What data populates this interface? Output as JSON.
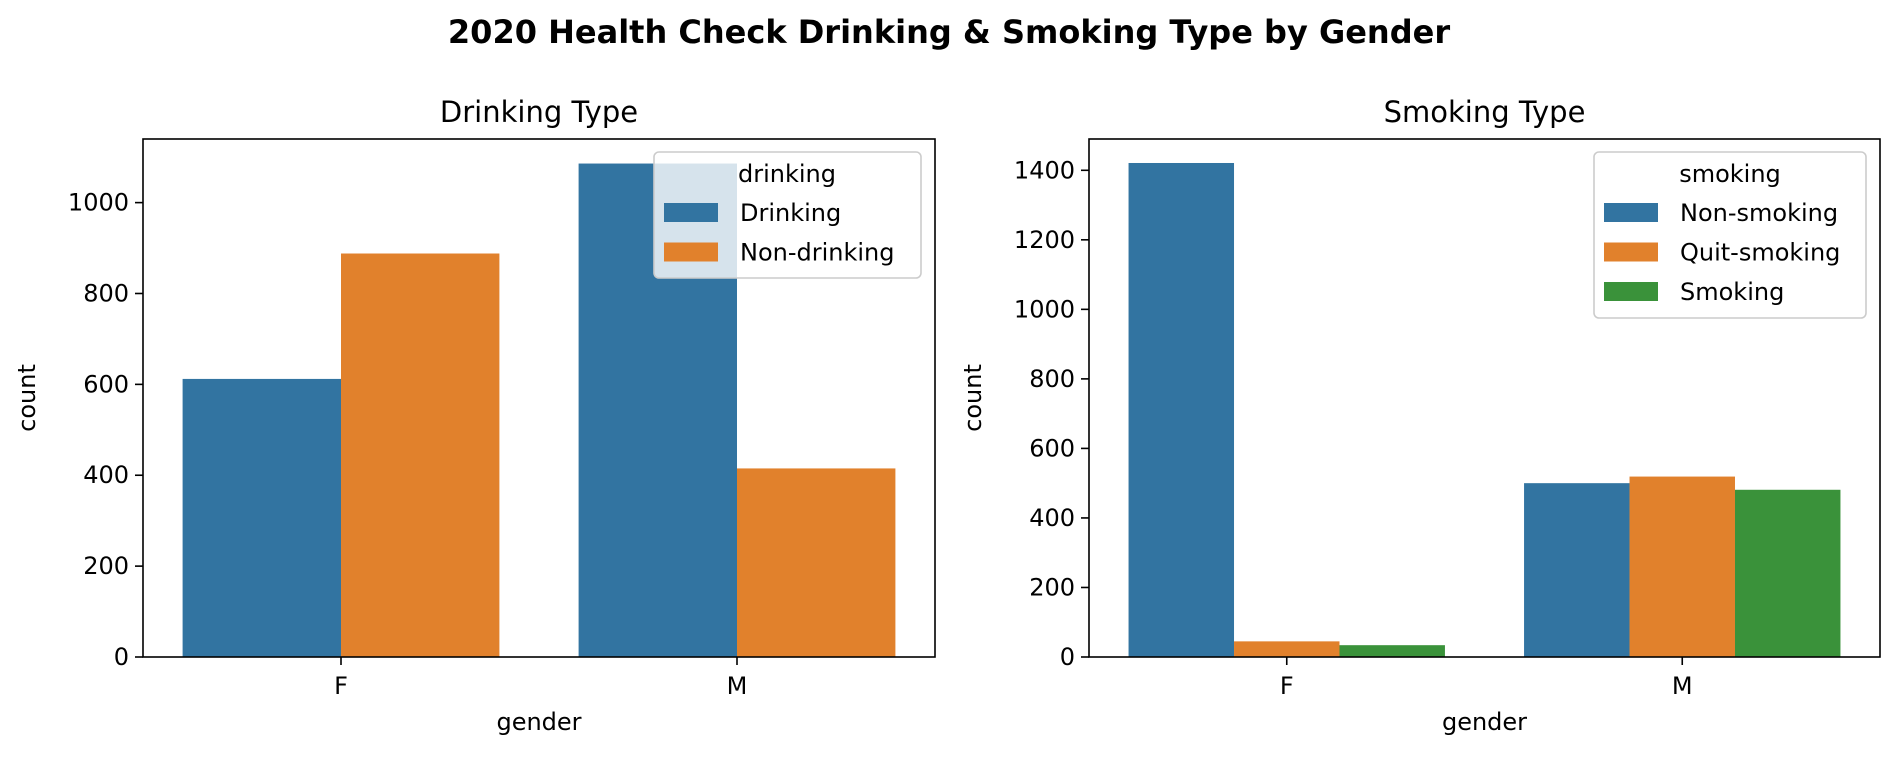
{
  "figure": {
    "suptitle": "2020 Health Check Drinking & Smoking Type by Gender"
  },
  "chart_data": [
    {
      "type": "bar",
      "title": "Drinking Type",
      "xlabel": "gender",
      "ylabel": "count",
      "categories": [
        "F",
        "M"
      ],
      "ylim": [
        0,
        1140
      ],
      "yticks": [
        0,
        200,
        400,
        600,
        800,
        1000
      ],
      "legend": {
        "title": "drinking",
        "placement": "upper right"
      },
      "series": [
        {
          "name": "Drinking",
          "color": "#3274a1",
          "values": [
            612,
            1086
          ]
        },
        {
          "name": "Non-drinking",
          "color": "#e1812c",
          "values": [
            888,
            415
          ]
        }
      ]
    },
    {
      "type": "bar",
      "title": "Smoking Type",
      "xlabel": "gender",
      "ylabel": "count",
      "categories": [
        "F",
        "M"
      ],
      "ylim": [
        0,
        1490
      ],
      "yticks": [
        0,
        200,
        400,
        600,
        800,
        1000,
        1200,
        1400
      ],
      "legend": {
        "title": "smoking",
        "placement": "upper right"
      },
      "series": [
        {
          "name": "Non-smoking",
          "color": "#3274a1",
          "values": [
            1421,
            500
          ]
        },
        {
          "name": "Quit-smoking",
          "color": "#e1812c",
          "values": [
            45,
            519
          ]
        },
        {
          "name": "Smoking",
          "color": "#3a923a",
          "values": [
            34,
            481
          ]
        }
      ]
    }
  ]
}
